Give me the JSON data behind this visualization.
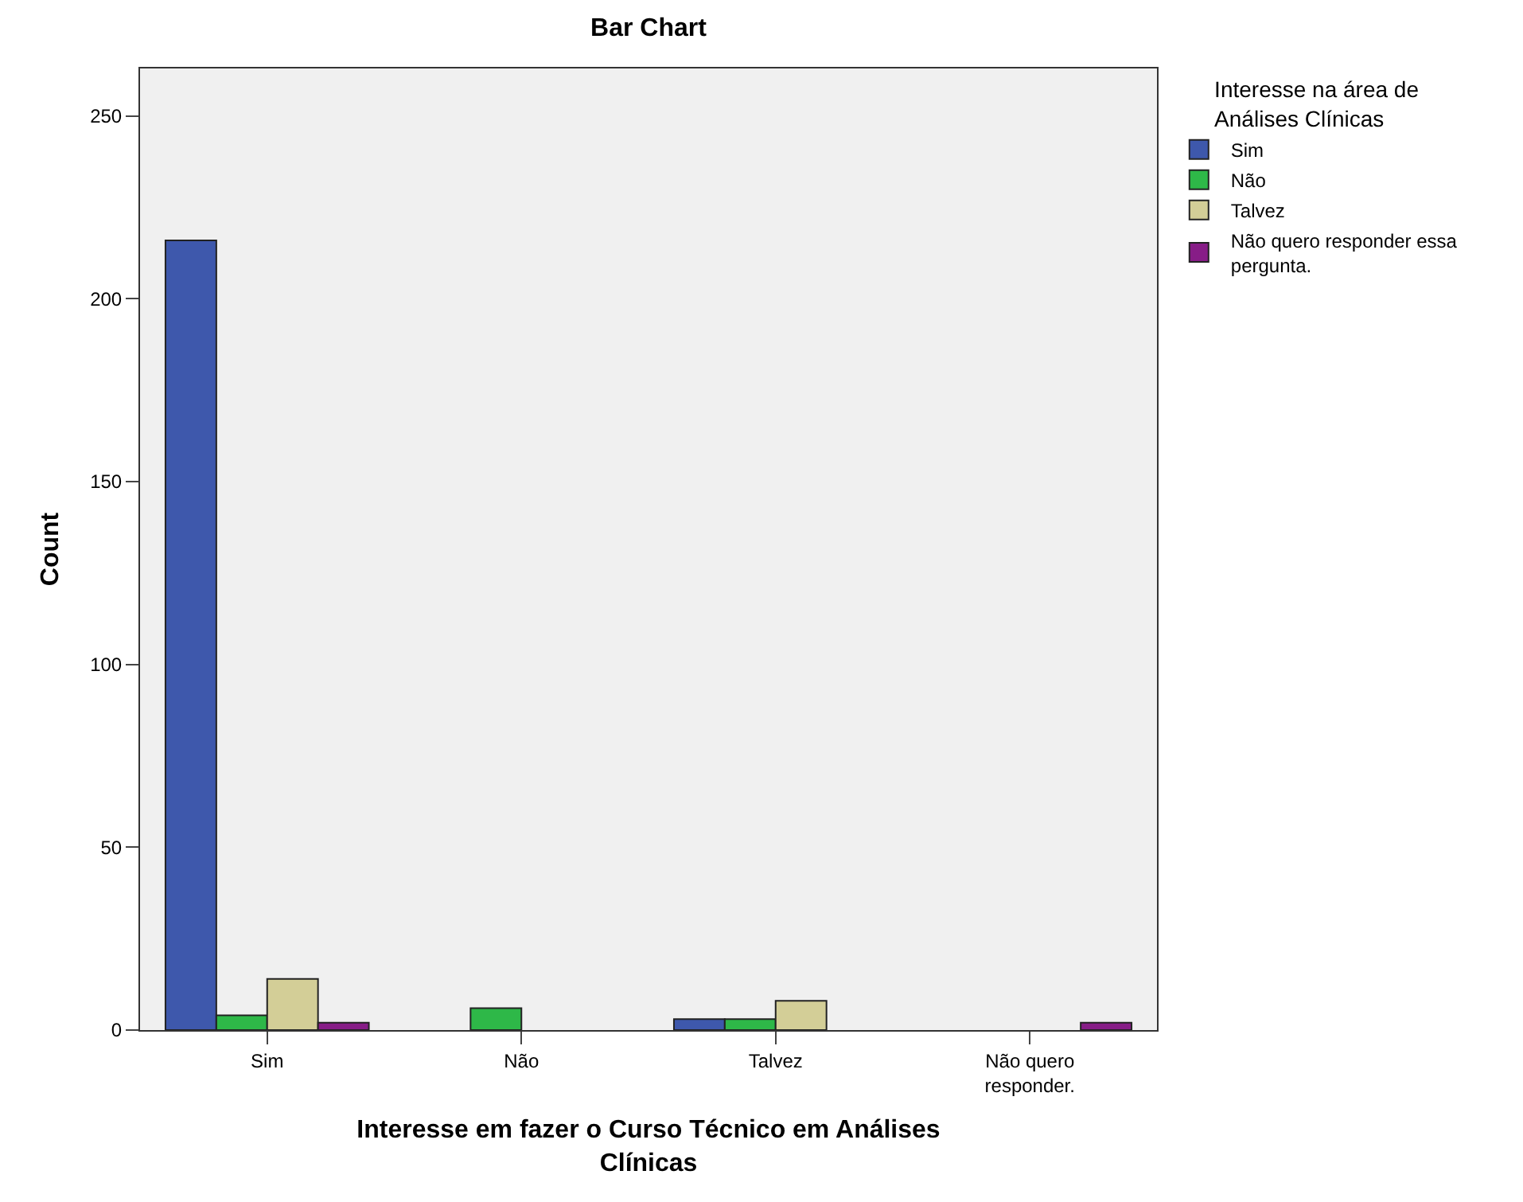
{
  "chart_data": {
    "type": "bar",
    "title": "Bar Chart",
    "xlabel": "Interesse em fazer o Curso Técnico em Análises Clínicas",
    "ylabel": "Count",
    "legend_title": "Interesse na área de Análises Clínicas",
    "categories": [
      "Sim",
      "Não",
      "Talvez",
      "Não quero responder."
    ],
    "series": [
      {
        "name": "Sim",
        "color": "#3e58ac",
        "values": [
          216,
          null,
          3,
          null
        ]
      },
      {
        "name": "Não",
        "color": "#2eb848",
        "values": [
          4,
          6,
          3,
          null
        ]
      },
      {
        "name": "Talvez",
        "color": "#d3ce97",
        "values": [
          14,
          null,
          8,
          null
        ]
      },
      {
        "name": "Não quero responder essa pergunta.",
        "color": "#871d87",
        "values": [
          2,
          null,
          null,
          2
        ]
      }
    ],
    "ylim": [
      0,
      263
    ],
    "yticks": [
      0,
      50,
      100,
      150,
      200,
      250
    ],
    "grid": false,
    "legend": "top right"
  }
}
